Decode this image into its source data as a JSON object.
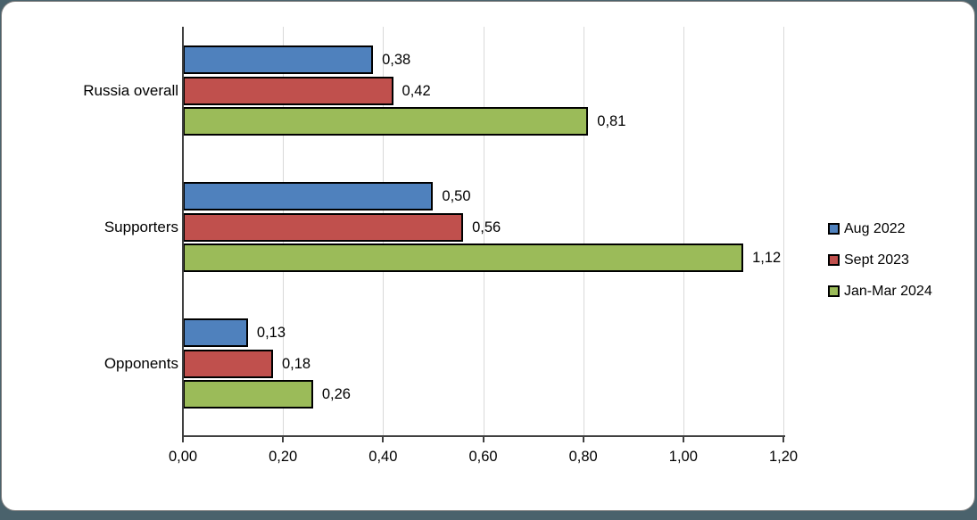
{
  "window": {
    "background_color": "#4A626C",
    "frame_background": "#FFFFFF",
    "frame_border_color": "#7F7F7F"
  },
  "chart_data": {
    "type": "bar",
    "orientation": "horizontal",
    "title": "",
    "xlabel": "",
    "ylabel": "",
    "grid": "vertical",
    "legend_position": "right",
    "decimal_separator": ",",
    "categories": [
      "Russia overall",
      "Supporters",
      "Opponents"
    ],
    "series": [
      {
        "name": "Aug 2022",
        "color": "#4F81BD",
        "values": [
          0.38,
          0.5,
          0.13
        ],
        "value_labels": [
          "0,38",
          "0,50",
          "0,13"
        ]
      },
      {
        "name": "Sept 2023",
        "color": "#C0504D",
        "values": [
          0.42,
          0.56,
          0.18
        ],
        "value_labels": [
          "0,42",
          "0,56",
          "0,18"
        ]
      },
      {
        "name": "Jan-Mar 2024",
        "color": "#9BBB59",
        "values": [
          0.81,
          1.12,
          0.26
        ],
        "value_labels": [
          "0,81",
          "1,12",
          "0,26"
        ]
      }
    ],
    "xlim": [
      0,
      1.2
    ],
    "x_ticks": [
      0.0,
      0.2,
      0.4,
      0.6,
      0.8,
      1.0,
      1.2
    ],
    "x_tick_labels": [
      "0,00",
      "0,20",
      "0,40",
      "0,60",
      "0,80",
      "1,00",
      "1,20"
    ],
    "bar_border_color": "#000000",
    "gridline_color": "#D9D9D9",
    "axis_color": "#404040"
  }
}
